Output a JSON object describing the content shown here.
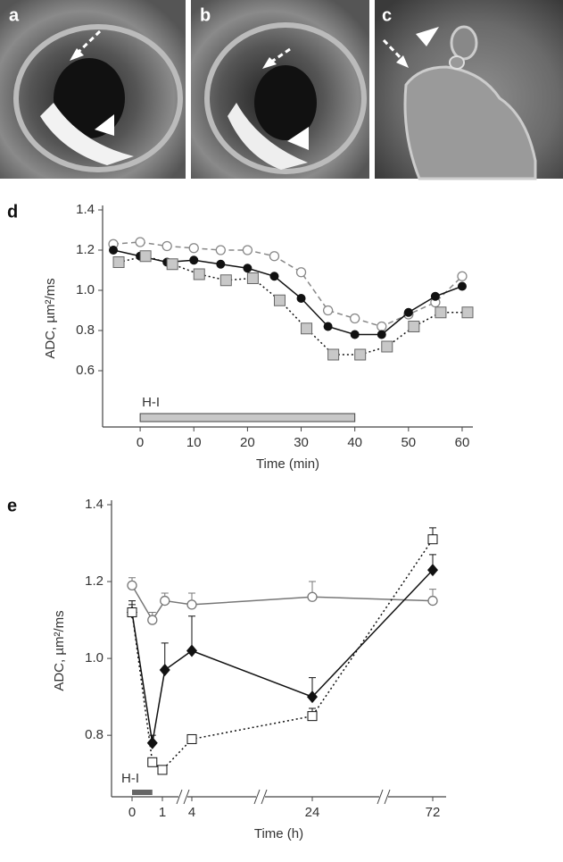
{
  "images": [
    {
      "label": "a"
    },
    {
      "label": "b"
    },
    {
      "label": "c"
    }
  ],
  "chart_data": [
    {
      "type": "line",
      "panel": "d",
      "x_label": "Time (min)",
      "y_label": "ADC, µm²/ms",
      "xlim": [
        -7,
        62
      ],
      "ylim": [
        0.32,
        1.4
      ],
      "xticks": [
        0,
        10,
        20,
        30,
        40,
        50,
        60
      ],
      "yticks": [
        0.6,
        0.8,
        {
          "value": 1,
          "label": "1.0"
        },
        1.2,
        1.4
      ],
      "annotation": {
        "label": "H-I",
        "start": 0,
        "end": 40
      },
      "series": [
        {
          "color": "#888888",
          "marker": "circle-open",
          "dash": "dashed",
          "x": [
            -5,
            0,
            5,
            10,
            15,
            20,
            25,
            30,
            35,
            40,
            45,
            50,
            55,
            60
          ],
          "values": [
            1.23,
            1.24,
            1.22,
            1.21,
            1.2,
            1.2,
            1.17,
            1.09,
            0.9,
            0.86,
            0.82,
            0.88,
            0.94,
            1.07
          ]
        },
        {
          "color": "#111111",
          "marker": "circle-filled",
          "dash": "solid",
          "x": [
            -5,
            0,
            5,
            10,
            15,
            20,
            25,
            30,
            35,
            40,
            45,
            50,
            55,
            60
          ],
          "values": [
            1.2,
            1.17,
            1.14,
            1.15,
            1.13,
            1.11,
            1.07,
            0.96,
            0.82,
            0.78,
            0.78,
            0.89,
            0.97,
            1.02
          ]
        },
        {
          "color": "#111111",
          "marker": "square-gray",
          "dash": "dotted",
          "x": [
            -4,
            1,
            6,
            11,
            16,
            21,
            26,
            31,
            36,
            41,
            46,
            51,
            56,
            61
          ],
          "values": [
            1.14,
            1.17,
            1.13,
            1.08,
            1.05,
            1.06,
            0.95,
            0.81,
            0.68,
            0.68,
            0.72,
            0.82,
            0.89,
            0.89
          ]
        }
      ]
    },
    {
      "type": "line",
      "panel": "e",
      "x_label": "Time (h)",
      "y_label": "ADC, µm²/ms",
      "x_scale": "broken",
      "xlim": [
        -0.7,
        77
      ],
      "ylim": [
        0.64,
        1.4
      ],
      "xticks": [
        0,
        1,
        4,
        24,
        72
      ],
      "yticks": [
        0.8,
        {
          "value": 1,
          "label": "1.0"
        },
        1.2,
        1.4
      ],
      "annotation": {
        "label": "H-I",
        "start": 0,
        "end": 0.67
      },
      "series": [
        {
          "color": "#777777",
          "marker": "circle-open",
          "dash": "solid",
          "x": [
            0,
            0.67,
            1.25,
            4,
            24,
            72
          ],
          "values": [
            1.19,
            1.1,
            1.15,
            1.14,
            1.16,
            1.15
          ],
          "errors": [
            0.02,
            0.02,
            0.02,
            0.03,
            0.04,
            0.03
          ]
        },
        {
          "color": "#111111",
          "marker": "diamond",
          "dash": "solid",
          "x": [
            0,
            0.67,
            1.25,
            4,
            24,
            72
          ],
          "values": [
            1.12,
            0.78,
            0.97,
            1.02,
            0.9,
            1.23
          ],
          "errors": [
            0.03,
            0.02,
            0.07,
            0.09,
            0.05,
            0.04
          ]
        },
        {
          "color": "#111111",
          "marker": "square-open",
          "dash": "dotted",
          "x": [
            0,
            0.67,
            1,
            4,
            24,
            72
          ],
          "values": [
            1.12,
            0.73,
            0.71,
            0.79,
            0.85,
            1.31
          ],
          "errors": [
            0.02,
            0.01,
            0.01,
            0.01,
            0.02,
            0.03
          ]
        }
      ]
    }
  ]
}
